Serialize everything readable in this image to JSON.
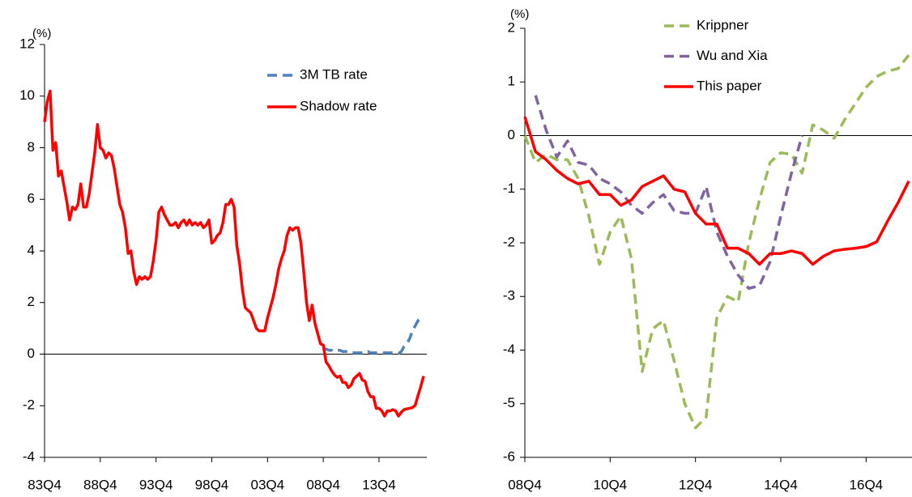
{
  "chart_data": [
    {
      "type": "line",
      "y_label": "(%)",
      "categories": [
        "83Q4",
        null,
        null,
        null,
        null,
        null,
        null,
        null,
        null,
        null,
        null,
        null,
        null,
        null,
        null,
        null,
        null,
        null,
        null,
        null,
        "88Q4",
        null,
        null,
        null,
        null,
        null,
        null,
        null,
        null,
        null,
        null,
        null,
        null,
        null,
        null,
        null,
        null,
        null,
        null,
        null,
        "93Q4",
        null,
        null,
        null,
        null,
        null,
        null,
        null,
        null,
        null,
        null,
        null,
        null,
        null,
        null,
        null,
        null,
        null,
        null,
        null,
        "98Q4",
        null,
        null,
        null,
        null,
        null,
        null,
        null,
        null,
        null,
        null,
        null,
        null,
        null,
        null,
        null,
        null,
        null,
        null,
        null,
        "03Q4",
        null,
        null,
        null,
        null,
        null,
        null,
        null,
        null,
        null,
        null,
        null,
        null,
        null,
        null,
        null,
        null,
        null,
        null,
        null,
        "08Q4",
        null,
        null,
        null,
        null,
        null,
        null,
        null,
        null,
        null,
        null,
        null,
        null,
        null,
        null,
        null,
        null,
        null,
        null,
        null,
        "13Q4",
        null,
        null,
        null,
        null,
        null,
        null,
        null,
        null,
        null,
        null,
        null,
        null,
        null,
        null,
        null,
        null
      ],
      "series": [
        {
          "name": "3M TB rate",
          "color": "#4f81bd",
          "dashed": true,
          "values": [
            null,
            null,
            null,
            null,
            null,
            null,
            null,
            null,
            null,
            null,
            null,
            null,
            null,
            null,
            null,
            null,
            null,
            null,
            null,
            null,
            null,
            null,
            null,
            null,
            null,
            null,
            null,
            null,
            null,
            null,
            null,
            null,
            null,
            null,
            null,
            null,
            null,
            null,
            null,
            null,
            null,
            null,
            null,
            null,
            null,
            null,
            null,
            null,
            null,
            null,
            null,
            null,
            null,
            null,
            null,
            null,
            null,
            null,
            null,
            null,
            null,
            null,
            null,
            null,
            null,
            null,
            null,
            null,
            null,
            null,
            null,
            null,
            null,
            null,
            null,
            null,
            null,
            null,
            null,
            null,
            null,
            null,
            null,
            null,
            null,
            null,
            null,
            null,
            null,
            null,
            null,
            null,
            null,
            null,
            null,
            null,
            null,
            null,
            null,
            null,
            0.2,
            0.2,
            0.15,
            0.15,
            0.1,
            0.15,
            0.15,
            0.1,
            0.1,
            0.1,
            0.05,
            0.05,
            0.05,
            0.05,
            0.05,
            0.05,
            0.1,
            0.05,
            0.05,
            0.05,
            0.05,
            0.05,
            0.05,
            0.05,
            0.05,
            0.05,
            0.03,
            0.03,
            0.1,
            0.3,
            0.4,
            0.6,
            0.9,
            1.1,
            1.3,
            1.4,
            1.45
          ]
        },
        {
          "name": "Shadow rate",
          "color": "#ff0000",
          "dashed": false,
          "values": [
            9.0,
            9.8,
            10.2,
            7.9,
            8.2,
            6.9,
            7.1,
            6.5,
            5.9,
            5.2,
            5.7,
            5.6,
            5.8,
            6.6,
            5.7,
            5.7,
            6.2,
            7.0,
            7.8,
            8.9,
            8.0,
            7.9,
            7.6,
            7.8,
            7.7,
            7.2,
            6.5,
            5.8,
            5.5,
            4.9,
            3.9,
            4.0,
            3.2,
            2.7,
            3.0,
            2.9,
            3.0,
            2.9,
            3.0,
            3.6,
            4.4,
            5.5,
            5.7,
            5.4,
            5.2,
            5.0,
            5.0,
            5.1,
            4.9,
            5.1,
            5.2,
            5.0,
            5.2,
            5.0,
            5.1,
            5.0,
            5.1,
            4.9,
            5.0,
            5.2,
            4.3,
            4.4,
            4.6,
            4.7,
            5.1,
            5.8,
            5.8,
            6.0,
            5.7,
            4.2,
            3.5,
            2.5,
            1.8,
            1.7,
            1.6,
            1.3,
            1.0,
            0.9,
            0.9,
            0.9,
            1.4,
            1.8,
            2.2,
            2.7,
            3.3,
            3.7,
            4.0,
            4.6,
            4.9,
            4.8,
            4.9,
            4.9,
            4.3,
            3.2,
            2.0,
            1.3,
            1.9,
            1.2,
            0.8,
            0.4,
            0.35,
            -0.3,
            -0.45,
            -0.65,
            -0.8,
            -0.9,
            -0.85,
            -1.1,
            -1.1,
            -1.3,
            -1.2,
            -0.95,
            -0.85,
            -0.75,
            -1.0,
            -1.05,
            -1.45,
            -1.65,
            -1.65,
            -2.1,
            -2.1,
            -2.2,
            -2.4,
            -2.2,
            -2.2,
            -2.15,
            -2.2,
            -2.4,
            -2.25,
            -2.15,
            -2.12,
            -2.1,
            -2.07,
            -1.98,
            -1.6,
            -1.25,
            -0.85
          ]
        }
      ],
      "ylim": [
        -4,
        12
      ],
      "yticks": [
        -4,
        -2,
        0,
        2,
        4,
        6,
        8,
        10,
        12
      ],
      "legend": "top-right"
    },
    {
      "type": "line",
      "y_label": "(%)",
      "categories": [
        "08Q4",
        null,
        null,
        null,
        null,
        null,
        null,
        null,
        "10Q4",
        null,
        null,
        null,
        null,
        null,
        null,
        null,
        "12Q4",
        null,
        null,
        null,
        null,
        null,
        null,
        null,
        "14Q4",
        null,
        null,
        null,
        null,
        null,
        null,
        null,
        "16Q4",
        null,
        null,
        null,
        null
      ],
      "series": [
        {
          "name": "Krippner",
          "color": "#9bbb59",
          "dashed": true,
          "values": [
            0.0,
            -0.5,
            -0.35,
            -0.45,
            -0.45,
            -0.8,
            -1.5,
            -2.4,
            -1.8,
            -1.5,
            -2.3,
            -4.4,
            -3.6,
            -3.45,
            -4.2,
            -5.0,
            -5.45,
            -5.25,
            -3.4,
            -3.0,
            -3.1,
            -2.0,
            -1.2,
            -0.5,
            -0.32,
            -0.35,
            -0.7,
            0.2,
            0.1,
            -0.05,
            0.3,
            0.6,
            0.9,
            1.1,
            1.2,
            1.25,
            1.5
          ]
        },
        {
          "name": "Wu and Xia",
          "color": "#8064a2",
          "dashed": true,
          "values": [
            null,
            0.75,
            0.1,
            -0.4,
            -0.1,
            -0.5,
            -0.55,
            -0.8,
            -0.9,
            -1.05,
            -1.3,
            -1.45,
            -1.25,
            -1.1,
            -1.4,
            -1.45,
            -1.45,
            -0.95,
            -1.8,
            -2.25,
            -2.6,
            -2.85,
            -2.8,
            -2.35,
            -1.5,
            -0.7,
            0.0,
            null,
            null,
            null,
            null,
            null,
            null,
            null,
            null,
            null,
            null
          ]
        },
        {
          "name": "This paper",
          "color": "#ff0000",
          "dashed": false,
          "values": [
            0.35,
            -0.3,
            -0.45,
            -0.65,
            -0.8,
            -0.9,
            -0.85,
            -1.1,
            -1.1,
            -1.3,
            -1.2,
            -0.95,
            -0.85,
            -0.75,
            -1.0,
            -1.05,
            -1.45,
            -1.65,
            -1.65,
            -2.1,
            -2.1,
            -2.2,
            -2.4,
            -2.2,
            -2.2,
            -2.15,
            -2.2,
            -2.4,
            -2.25,
            -2.15,
            -2.12,
            -2.1,
            -2.07,
            -1.98,
            -1.6,
            -1.25,
            -0.85
          ]
        }
      ],
      "ylim": [
        -6,
        2
      ],
      "yticks": [
        -6,
        -5,
        -4,
        -3,
        -2,
        -1,
        0,
        1,
        2
      ],
      "legend": "top-center"
    }
  ]
}
